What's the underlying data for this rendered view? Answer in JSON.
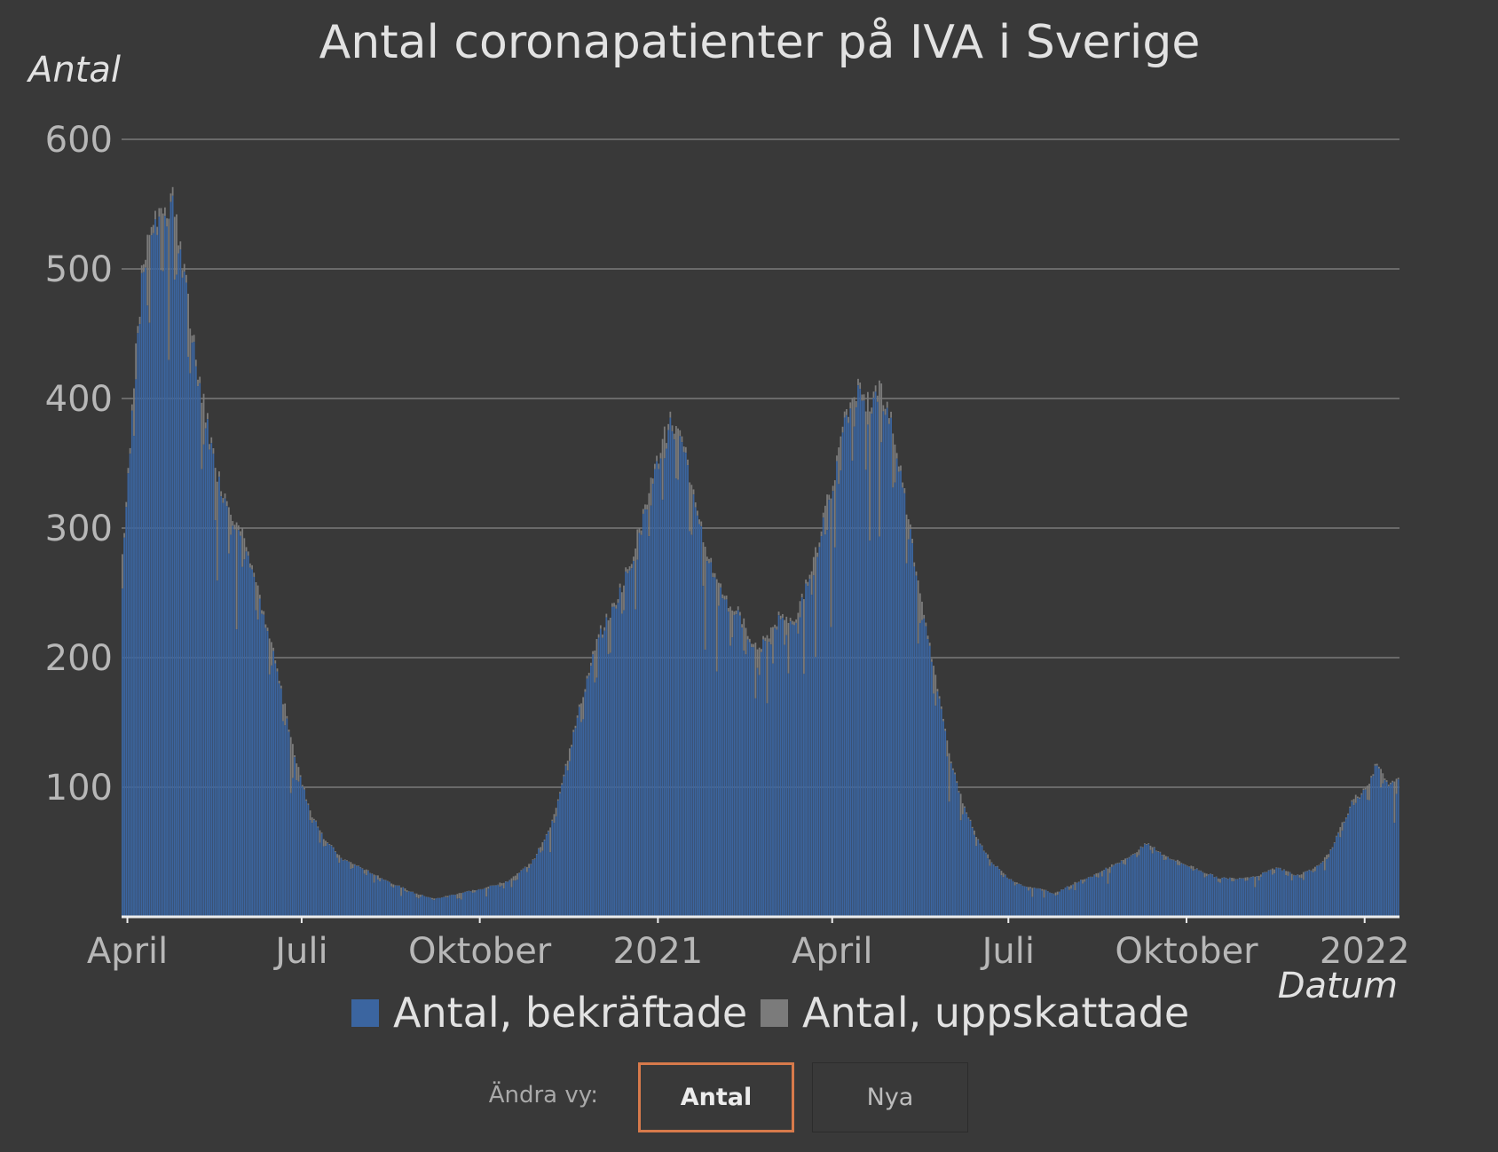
{
  "chart_data": {
    "type": "bar",
    "title": "Antal coronapatienter på IVA i Sverige",
    "ylabel": "Antal",
    "xlabel": "Datum",
    "ylim": [
      0,
      600
    ],
    "y_ticks": [
      "100",
      "200",
      "300",
      "400",
      "500",
      "600"
    ],
    "x_ticks": [
      {
        "label": "April",
        "day": 1
      },
      {
        "label": "Juli",
        "day": 91
      },
      {
        "label": "Oktober",
        "day": 183
      },
      {
        "label": "2021",
        "day": 275
      },
      {
        "label": "April",
        "day": 365
      },
      {
        "label": "Juli",
        "day": 456
      },
      {
        "label": "Oktober",
        "day": 548
      },
      {
        "label": "2022",
        "day": 640
      }
    ],
    "day_range": [
      -2,
      658
    ],
    "x_note": "day 0 = 2020-03-31; daily bars",
    "series": [
      {
        "name": "Antal, bekräftade",
        "color": "#3b65a0"
      },
      {
        "name": "Antal, uppskattade",
        "color": "#7b7b7b"
      }
    ],
    "approx_total_keypoints": [
      [
        -2,
        270
      ],
      [
        2,
        350
      ],
      [
        5,
        430
      ],
      [
        9,
        500
      ],
      [
        13,
        540
      ],
      [
        18,
        535
      ],
      [
        24,
        555
      ],
      [
        28,
        520
      ],
      [
        33,
        470
      ],
      [
        40,
        400
      ],
      [
        48,
        340
      ],
      [
        56,
        310
      ],
      [
        63,
        290
      ],
      [
        70,
        240
      ],
      [
        77,
        200
      ],
      [
        84,
        150
      ],
      [
        90,
        110
      ],
      [
        96,
        80
      ],
      [
        103,
        60
      ],
      [
        112,
        45
      ],
      [
        122,
        38
      ],
      [
        135,
        28
      ],
      [
        150,
        18
      ],
      [
        160,
        14
      ],
      [
        172,
        18
      ],
      [
        185,
        22
      ],
      [
        198,
        28
      ],
      [
        210,
        42
      ],
      [
        220,
        70
      ],
      [
        228,
        120
      ],
      [
        236,
        170
      ],
      [
        244,
        215
      ],
      [
        252,
        240
      ],
      [
        260,
        270
      ],
      [
        268,
        310
      ],
      [
        276,
        360
      ],
      [
        282,
        385
      ],
      [
        289,
        360
      ],
      [
        296,
        310
      ],
      [
        304,
        265
      ],
      [
        311,
        245
      ],
      [
        319,
        230
      ],
      [
        326,
        205
      ],
      [
        331,
        215
      ],
      [
        339,
        235
      ],
      [
        346,
        222
      ],
      [
        352,
        260
      ],
      [
        358,
        290
      ],
      [
        366,
        340
      ],
      [
        372,
        385
      ],
      [
        378,
        410
      ],
      [
        384,
        395
      ],
      [
        390,
        405
      ],
      [
        396,
        385
      ],
      [
        402,
        330
      ],
      [
        408,
        275
      ],
      [
        414,
        225
      ],
      [
        420,
        170
      ],
      [
        426,
        125
      ],
      [
        432,
        90
      ],
      [
        440,
        60
      ],
      [
        448,
        42
      ],
      [
        456,
        30
      ],
      [
        464,
        24
      ],
      [
        472,
        22
      ],
      [
        480,
        18
      ],
      [
        490,
        26
      ],
      [
        500,
        32
      ],
      [
        510,
        40
      ],
      [
        520,
        48
      ],
      [
        528,
        57
      ],
      [
        536,
        48
      ],
      [
        545,
        42
      ],
      [
        555,
        36
      ],
      [
        565,
        30
      ],
      [
        575,
        30
      ],
      [
        585,
        32
      ],
      [
        595,
        38
      ],
      [
        605,
        32
      ],
      [
        615,
        38
      ],
      [
        622,
        50
      ],
      [
        628,
        70
      ],
      [
        634,
        90
      ],
      [
        642,
        100
      ],
      [
        646,
        118
      ],
      [
        650,
        108
      ],
      [
        654,
        102
      ],
      [
        658,
        108
      ]
    ]
  },
  "controls": {
    "label": "Ändra vy:",
    "buttons": [
      {
        "label": "Antal",
        "active": true
      },
      {
        "label": "Nya",
        "active": false
      }
    ]
  }
}
